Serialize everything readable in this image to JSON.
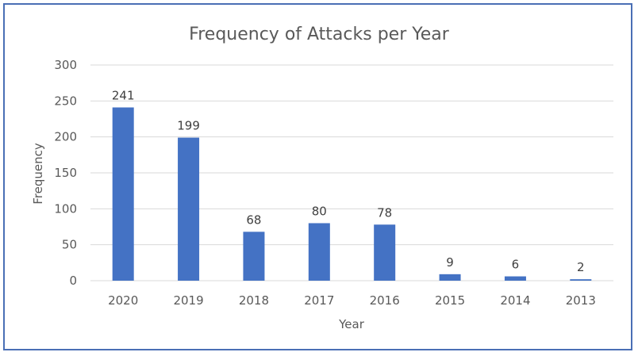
{
  "chart_data": {
    "type": "bar",
    "title": "Frequency of Attacks per Year",
    "xlabel": "Year",
    "ylabel": "Frequency",
    "categories": [
      "2020",
      "2019",
      "2018",
      "2017",
      "2016",
      "2015",
      "2014",
      "2013"
    ],
    "values": [
      241,
      199,
      68,
      80,
      78,
      9,
      6,
      2
    ],
    "ylim": [
      0,
      300
    ],
    "yticks": [
      0,
      50,
      100,
      150,
      200,
      250,
      300
    ],
    "grid": true,
    "legend": "none",
    "colors": {
      "bar": "#4472c4",
      "grid": "#d9d9d9",
      "frame": "#4a6fb5"
    }
  }
}
